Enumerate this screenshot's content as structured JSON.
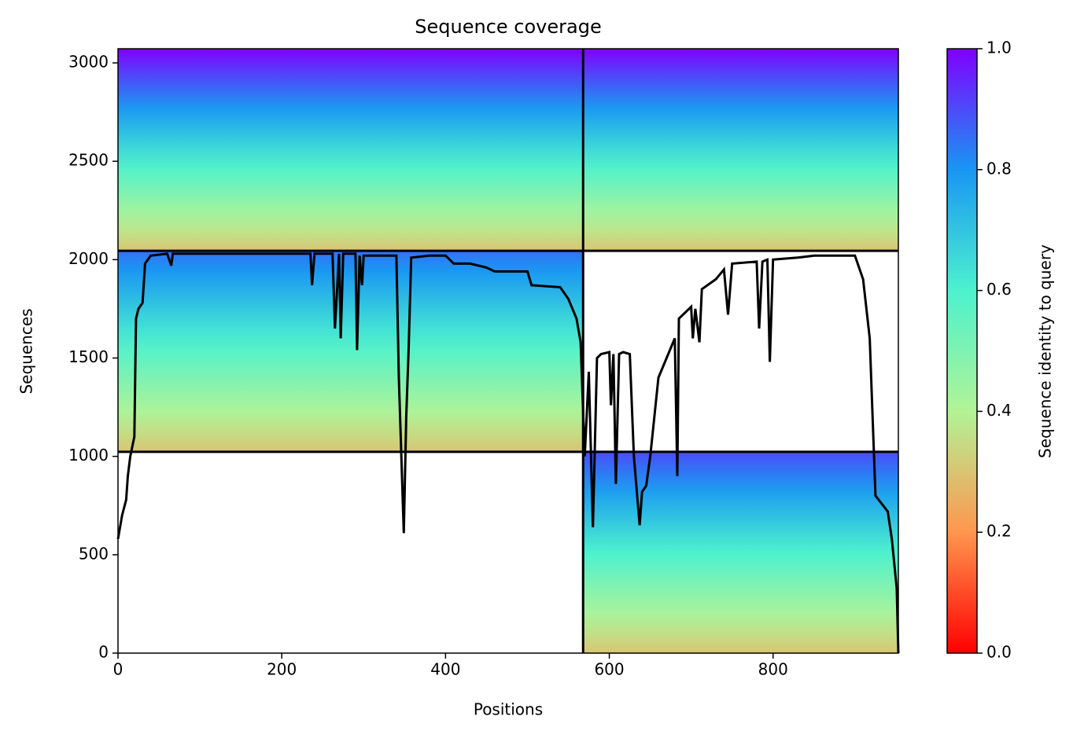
{
  "chart_data": {
    "type": "coverage",
    "title": "Sequence coverage",
    "x_label": "Positions",
    "y_label": "Sequences",
    "xlim": [
      0,
      953
    ],
    "ylim": [
      0,
      3072
    ],
    "xticks": [
      0,
      200,
      400,
      600,
      800
    ],
    "yticks": [
      0,
      500,
      1000,
      1500,
      2000,
      2500,
      3000
    ],
    "dividers_x": [
      568
    ],
    "dividers_y": [
      1023,
      2045
    ],
    "blocks": [
      {
        "x": [
          0,
          568
        ],
        "y": [
          2045,
          3072
        ],
        "identity": [
          0.3,
          1.0
        ]
      },
      {
        "x": [
          568,
          953
        ],
        "y": [
          2045,
          3072
        ],
        "identity": [
          0.3,
          1.0
        ]
      },
      {
        "x": [
          0,
          568
        ],
        "y": [
          1023,
          2045
        ],
        "identity": [
          0.3,
          0.85
        ]
      },
      {
        "x": [
          568,
          953
        ],
        "y": [
          0,
          1023
        ],
        "identity": [
          0.3,
          0.9
        ]
      }
    ],
    "coverage": {
      "color": "#000000",
      "x": [
        0,
        5,
        10,
        12,
        15,
        20,
        22,
        25,
        30,
        33,
        40,
        60,
        65,
        67,
        235,
        237,
        240,
        262,
        265,
        270,
        272,
        275,
        290,
        292,
        295,
        298,
        300,
        340,
        343,
        346,
        349,
        352,
        355,
        358,
        380,
        400,
        410,
        430,
        450,
        460,
        500,
        505,
        540,
        550,
        560,
        565,
        570,
        575,
        580,
        585,
        590,
        600,
        602,
        605,
        608,
        612,
        617,
        625,
        630,
        637,
        640,
        645,
        650,
        655,
        660,
        670,
        680,
        683,
        685,
        700,
        702,
        705,
        710,
        713,
        730,
        740,
        745,
        750,
        780,
        783,
        787,
        793,
        796,
        800,
        830,
        850,
        900,
        910,
        918,
        925,
        940,
        945,
        951,
        953
      ],
      "values": [
        580,
        700,
        780,
        900,
        1000,
        1100,
        1700,
        1750,
        1780,
        1980,
        2020,
        2030,
        1970,
        2030,
        2030,
        1870,
        2030,
        2030,
        1650,
        2030,
        1600,
        2030,
        2030,
        1540,
        2020,
        1870,
        2020,
        2020,
        1400,
        1000,
        610,
        1200,
        1550,
        2010,
        2020,
        2020,
        1980,
        1980,
        1960,
        1940,
        1940,
        1870,
        1860,
        1800,
        1700,
        1580,
        1000,
        1430,
        640,
        1500,
        1520,
        1530,
        1260,
        1520,
        860,
        1520,
        1530,
        1520,
        1000,
        650,
        820,
        850,
        1000,
        1200,
        1400,
        1500,
        1600,
        900,
        1700,
        1760,
        1600,
        1750,
        1580,
        1850,
        1900,
        1950,
        1720,
        1980,
        1990,
        1650,
        1990,
        2000,
        1480,
        2000,
        2010,
        2020,
        2020,
        1900,
        1600,
        800,
        720,
        580,
        330,
        0
      ]
    },
    "colorbar": {
      "label": "Sequence identity to query",
      "lim": [
        0,
        1
      ],
      "ticks": [
        {
          "value": 0,
          "label": "0.0"
        },
        {
          "value": 0.2,
          "label": "0.2"
        },
        {
          "value": 0.4,
          "label": "0.4"
        },
        {
          "value": 0.6,
          "label": "0.6"
        },
        {
          "value": 0.8,
          "label": "0.8"
        },
        {
          "value": 1,
          "label": "1.0"
        }
      ],
      "colors": [
        "#ff0000",
        "#ff964f",
        "#b2f396",
        "#4cf2ce",
        "#1996f3",
        "#8000ff"
      ]
    }
  }
}
